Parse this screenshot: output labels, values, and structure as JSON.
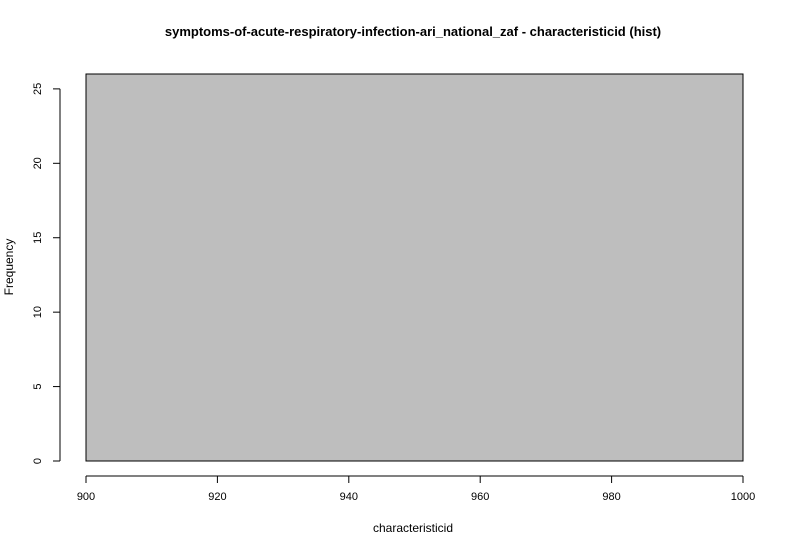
{
  "chart_data": {
    "type": "bar",
    "title": "symptoms-of-acute-respiratory-infection-ari_national_zaf - characteristicid (hist)",
    "xlabel": "characteristicid",
    "ylabel": "Frequency",
    "bins": [
      {
        "x0": 900,
        "x1": 1000,
        "count": 26
      }
    ],
    "xlim": [
      900,
      1000
    ],
    "ylim": [
      0,
      26
    ],
    "xticks": [
      900,
      920,
      940,
      960,
      980,
      1000
    ],
    "yticks": [
      0,
      5,
      10,
      15,
      20,
      25
    ],
    "bar_color": "#bebebe",
    "edge_color": "#000000"
  }
}
